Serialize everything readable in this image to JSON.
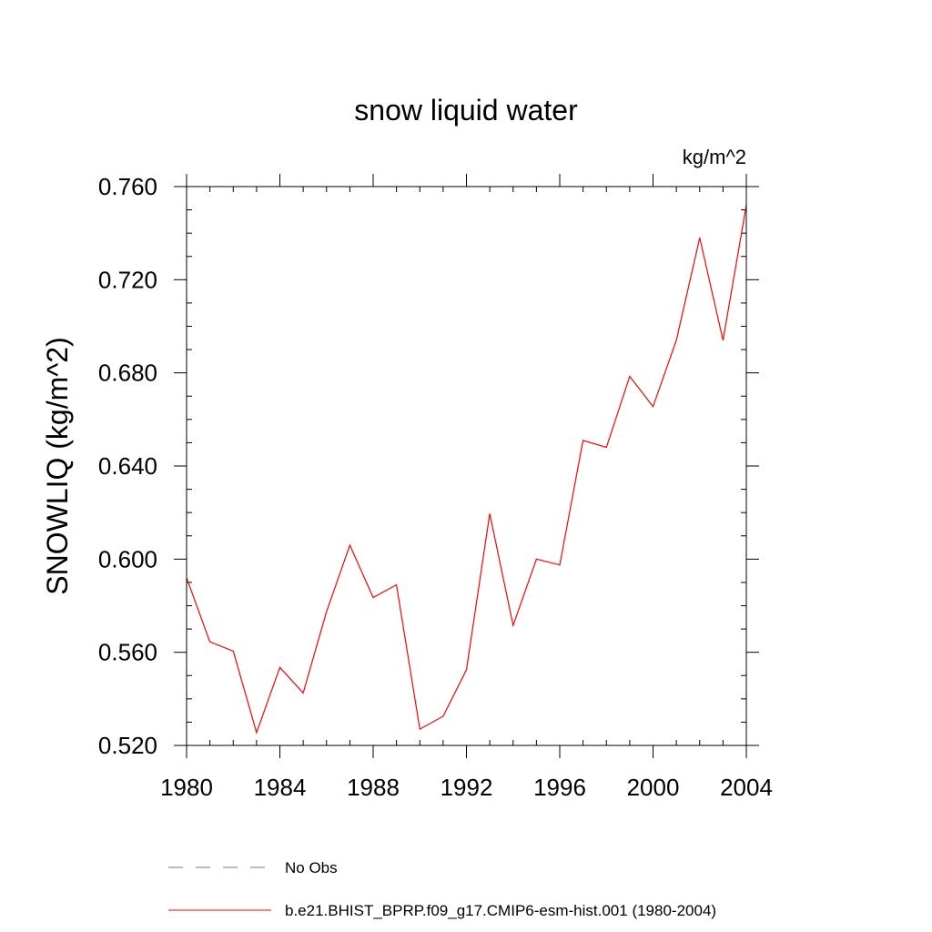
{
  "chart_data": {
    "type": "line",
    "title": "snow liquid water",
    "units_label": "kg/m^2",
    "ylabel": "SNOWLIQ  (kg/m^2)",
    "xlabel": "",
    "xlim": [
      1980,
      2004
    ],
    "ylim": [
      0.52,
      0.76
    ],
    "x_ticks": [
      1980,
      1984,
      1988,
      1992,
      1996,
      2000,
      2004
    ],
    "x_tick_labels": [
      "1980",
      "1984",
      "1988",
      "1992",
      "1996",
      "2000",
      "2004"
    ],
    "y_ticks": [
      0.52,
      0.56,
      0.6,
      0.64,
      0.68,
      0.72,
      0.76
    ],
    "y_tick_labels": [
      "0.520",
      "0.560",
      "0.600",
      "0.640",
      "0.680",
      "0.720",
      "0.760"
    ],
    "grid": false,
    "legend_position": "bottom",
    "series": [
      {
        "name": "b.e21.BHIST_BPRP.f09_g17.CMIP6-esm-hist.001 (1980-2004)",
        "color": "#ff0000",
        "dash": "solid",
        "x": [
          1980,
          1981,
          1982,
          1983,
          1984,
          1985,
          1986,
          1987,
          1988,
          1989,
          1990,
          1991,
          1992,
          1993,
          1994,
          1995,
          1996,
          1997,
          1998,
          1999,
          2000,
          2001,
          2002,
          2003,
          2004
        ],
        "values": [
          0.592,
          0.5645,
          0.5605,
          0.5255,
          0.5535,
          0.5425,
          0.5775,
          0.606,
          0.5835,
          0.589,
          0.527,
          0.5325,
          0.5525,
          0.6195,
          0.5715,
          0.6,
          0.5975,
          0.651,
          0.648,
          0.6785,
          0.6655,
          0.694,
          0.738,
          0.694,
          0.752
        ]
      },
      {
        "name": "No Obs",
        "color": "#7b68b8",
        "dash": "dashed",
        "x": [],
        "values": []
      }
    ]
  },
  "legend": {
    "items": [
      {
        "label": "No Obs",
        "color": "#7b68b8",
        "dash": "dashed"
      },
      {
        "label": "b.e21.BHIST_BPRP.f09_g17.CMIP6-esm-hist.001 (1980-2004)",
        "color": "#ff0000",
        "dash": "solid"
      }
    ]
  }
}
